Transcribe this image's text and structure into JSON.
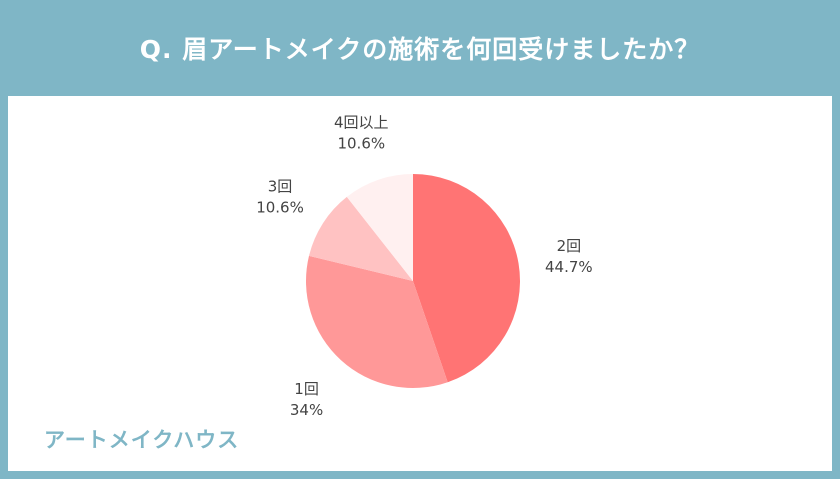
{
  "title": "Q. 眉アートメイクの施術を何回受けましたか？",
  "brand": "アートメイクハウス",
  "colors": {
    "background": "#7fb6c6",
    "panel": "#ffffff",
    "brand_text": "#7fb6c6"
  },
  "chart_data": {
    "type": "pie",
    "title": "Q. 眉アートメイクの施術を何回受けましたか？",
    "start_angle_deg": 0,
    "direction": "clockwise",
    "slices": [
      {
        "label": "2回",
        "value": 44.7,
        "value_label": "44.7%",
        "color": "#ff7474"
      },
      {
        "label": "1回",
        "value": 34,
        "value_label": "34%",
        "color": "#ff9898"
      },
      {
        "label": "3回",
        "value": 10.6,
        "value_label": "10.6%",
        "color": "#ffc2c2"
      },
      {
        "label": "4回以上",
        "value": 10.6,
        "value_label": "10.6%",
        "color": "#fff0f0"
      }
    ]
  }
}
